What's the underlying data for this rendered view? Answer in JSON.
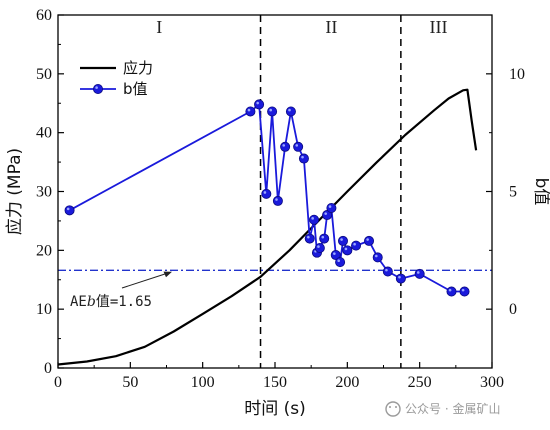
{
  "chart_data": {
    "type": "line",
    "xlabel": "时间 (s)",
    "ylabel_left": "应力 (MPa)",
    "ylabel_right": "b值",
    "xlim": [
      0,
      300
    ],
    "ylim_left": [
      0,
      60
    ],
    "ylim_right": [
      -2.5,
      12.5
    ],
    "x_ticks": [
      0,
      50,
      100,
      150,
      200,
      250,
      300
    ],
    "y_left_ticks": [
      0,
      10,
      20,
      30,
      40,
      50,
      60
    ],
    "y_right_ticks": [
      0,
      5,
      10
    ],
    "x_tick_labels": [
      "0",
      "50",
      "100",
      "150",
      "200",
      "250",
      "300"
    ],
    "y_left_tick_labels": [
      "0",
      "10",
      "20",
      "30",
      "40",
      "50",
      "60"
    ],
    "y_right_tick_labels": [
      "0",
      "5",
      "10"
    ],
    "grid": false,
    "legend_position": "top-left",
    "regions": [
      {
        "label": "I",
        "x_center": 70
      },
      {
        "label": "II",
        "x_center": 189
      },
      {
        "label": "III",
        "x_center": 263
      }
    ],
    "dividers": [
      140,
      237
    ],
    "reference_line": {
      "y": 1.65,
      "axis": "right",
      "label_prefix": "AE",
      "label_italic": "b",
      "label_suffix": "值=1.65"
    },
    "series": [
      {
        "name": "应力",
        "axis": "left",
        "color": "#000000",
        "marker": "none",
        "x": [
          0,
          20,
          40,
          60,
          80,
          100,
          120,
          140,
          160,
          180,
          200,
          220,
          240,
          260,
          270,
          280,
          283,
          286,
          289
        ],
        "y": [
          0.6,
          1.1,
          2.0,
          3.6,
          6.2,
          9.2,
          12.2,
          15.5,
          20.0,
          25.0,
          30.0,
          34.9,
          39.6,
          43.8,
          45.8,
          47.2,
          47.3,
          42.0,
          37.0
        ]
      },
      {
        "name": "b值",
        "axis": "right",
        "color": "#1a1adb",
        "marker": "circle",
        "x": [
          8,
          133,
          139,
          144,
          148,
          152,
          157,
          161,
          166,
          170,
          174,
          177,
          179,
          181,
          184,
          186,
          189,
          192,
          195,
          197,
          200,
          206,
          215,
          221,
          228,
          237,
          250,
          272,
          281
        ],
        "y": [
          4.2,
          8.4,
          8.7,
          4.9,
          8.4,
          4.6,
          6.9,
          8.4,
          6.9,
          6.4,
          3.0,
          3.8,
          2.4,
          2.6,
          3.0,
          4.0,
          4.3,
          2.3,
          2.0,
          2.9,
          2.5,
          2.7,
          2.9,
          2.2,
          1.6,
          1.3,
          1.5,
          0.75,
          0.75
        ]
      }
    ]
  },
  "watermark": {
    "text": "公众号 · 金属矿山"
  }
}
